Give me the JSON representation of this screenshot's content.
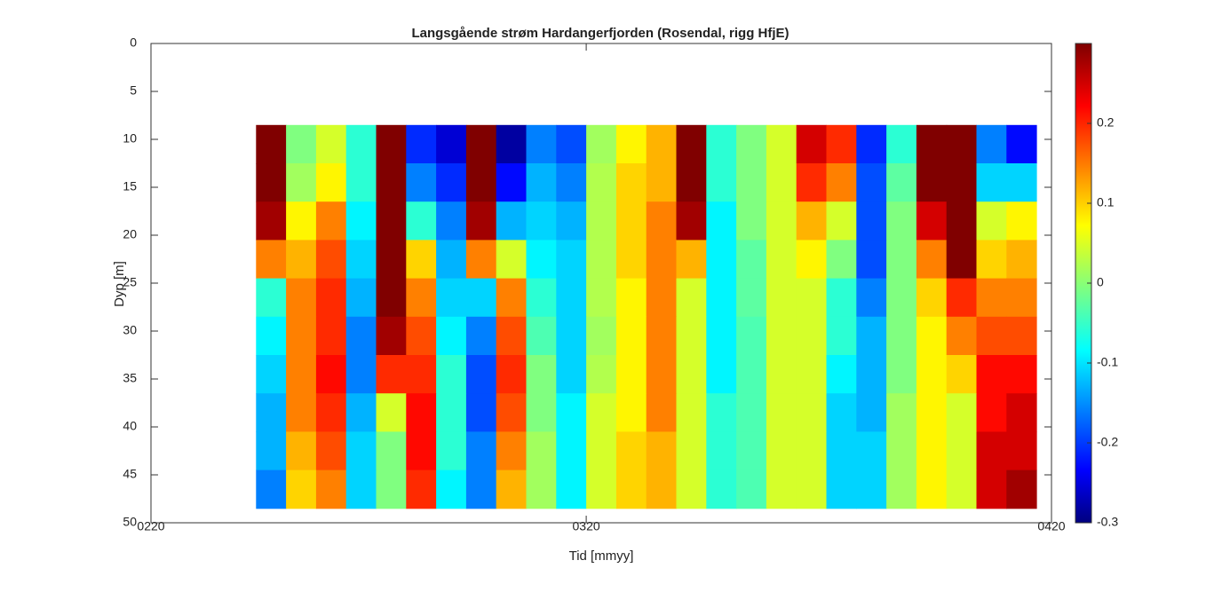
{
  "chart_data": {
    "type": "heatmap",
    "title": "Langsgående strøm Hardangerfjorden (Rosendal, rigg HfjE)",
    "x_label": "Tid [mmyy]",
    "y_label": "Dyp [m]",
    "xlim": [
      0,
      60
    ],
    "xticks": [
      {
        "value": 0,
        "label": "0220"
      },
      {
        "value": 29,
        "label": "0320"
      },
      {
        "value": 60,
        "label": "0420"
      }
    ],
    "ylim": [
      0,
      50
    ],
    "yticks": [
      0,
      5,
      10,
      15,
      20,
      25,
      30,
      35,
      40,
      45,
      50
    ],
    "y_reversed": true,
    "x": [
      8,
      10,
      12,
      14,
      16,
      18,
      20,
      22,
      24,
      26,
      28,
      30,
      32,
      34,
      36,
      38,
      40,
      42,
      44,
      46,
      48,
      50,
      52,
      54,
      56,
      58
    ],
    "y": [
      10.5,
      14.5,
      18.5,
      22.5,
      26.5,
      30.5,
      34.5,
      38.5,
      42.5,
      46.5
    ],
    "z": [
      [
        0.3,
        0.0,
        0.05,
        -0.05,
        0.3,
        -0.2,
        -0.25,
        0.3,
        -0.28,
        -0.15,
        -0.18,
        0.02,
        0.08,
        0.12,
        0.3,
        -0.05,
        0.0,
        0.05,
        0.25,
        0.2,
        -0.2,
        -0.05,
        0.3,
        0.3,
        -0.15,
        -0.22
      ],
      [
        0.3,
        0.02,
        0.08,
        -0.05,
        0.3,
        -0.15,
        -0.2,
        0.3,
        -0.22,
        -0.12,
        -0.15,
        0.03,
        0.1,
        0.12,
        0.3,
        -0.05,
        0.0,
        0.05,
        0.2,
        0.15,
        -0.18,
        -0.02,
        0.3,
        0.3,
        -0.1,
        -0.1
      ],
      [
        0.28,
        0.08,
        0.15,
        -0.08,
        0.3,
        -0.05,
        -0.15,
        0.28,
        -0.12,
        -0.1,
        -0.12,
        0.03,
        0.1,
        0.15,
        0.28,
        -0.08,
        0.0,
        0.05,
        0.12,
        0.05,
        -0.18,
        0.0,
        0.25,
        0.3,
        0.05,
        0.08
      ],
      [
        0.15,
        0.12,
        0.18,
        -0.1,
        0.3,
        0.1,
        -0.12,
        0.15,
        0.05,
        -0.08,
        -0.1,
        0.03,
        0.1,
        0.15,
        0.12,
        -0.08,
        -0.02,
        0.05,
        0.08,
        0.0,
        -0.18,
        0.0,
        0.15,
        0.3,
        0.1,
        0.12
      ],
      [
        -0.05,
        0.15,
        0.2,
        -0.12,
        0.3,
        0.15,
        -0.1,
        -0.1,
        0.15,
        -0.05,
        -0.1,
        0.03,
        0.08,
        0.15,
        0.05,
        -0.08,
        -0.02,
        0.05,
        0.05,
        -0.05,
        -0.15,
        0.0,
        0.1,
        0.2,
        0.15,
        0.15
      ],
      [
        -0.08,
        0.15,
        0.2,
        -0.15,
        0.28,
        0.18,
        -0.08,
        -0.15,
        0.18,
        -0.03,
        -0.1,
        0.02,
        0.08,
        0.15,
        0.05,
        -0.08,
        -0.03,
        0.05,
        0.05,
        -0.05,
        -0.12,
        0.0,
        0.08,
        0.15,
        0.18,
        0.18
      ],
      [
        -0.1,
        0.15,
        0.22,
        -0.15,
        0.2,
        0.2,
        -0.05,
        -0.18,
        0.2,
        0.0,
        -0.1,
        0.03,
        0.08,
        0.15,
        0.05,
        -0.08,
        -0.03,
        0.05,
        0.05,
        -0.08,
        -0.12,
        0.0,
        0.08,
        0.1,
        0.22,
        0.22
      ],
      [
        -0.12,
        0.15,
        0.2,
        -0.12,
        0.05,
        0.22,
        -0.05,
        -0.18,
        0.18,
        0.0,
        -0.08,
        0.05,
        0.08,
        0.15,
        0.05,
        -0.05,
        -0.03,
        0.05,
        0.05,
        -0.1,
        -0.12,
        0.02,
        0.08,
        0.05,
        0.22,
        0.25
      ],
      [
        -0.12,
        0.12,
        0.18,
        -0.1,
        0.0,
        0.22,
        -0.05,
        -0.15,
        0.15,
        0.02,
        -0.08,
        0.05,
        0.1,
        0.12,
        0.05,
        -0.05,
        -0.03,
        0.05,
        0.05,
        -0.1,
        -0.1,
        0.02,
        0.08,
        0.05,
        0.25,
        0.25
      ],
      [
        -0.15,
        0.1,
        0.15,
        -0.1,
        0.0,
        0.2,
        -0.08,
        -0.15,
        0.12,
        0.02,
        -0.08,
        0.05,
        0.1,
        0.12,
        0.05,
        -0.05,
        -0.03,
        0.05,
        0.05,
        -0.1,
        -0.1,
        0.02,
        0.08,
        0.05,
        0.25,
        0.28
      ]
    ],
    "colormap": "jet",
    "clim": [
      -0.3,
      0.3
    ],
    "cticks": [
      -0.3,
      -0.2,
      -0.1,
      0,
      0.1,
      0.2
    ]
  }
}
